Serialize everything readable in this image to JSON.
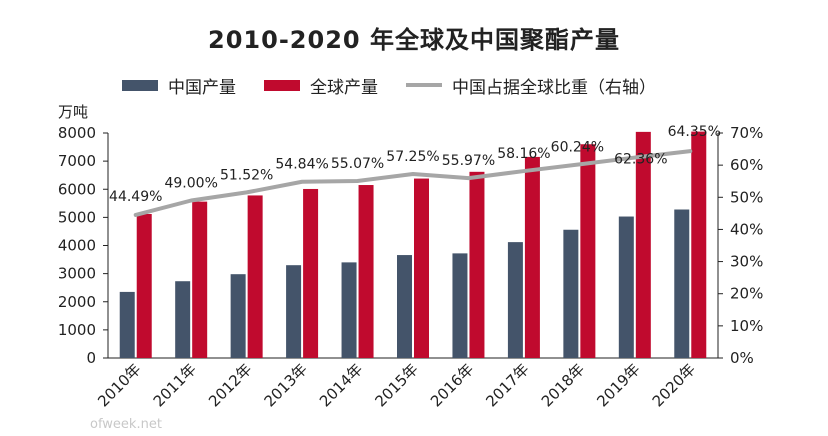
{
  "chart_data": {
    "type": "bar",
    "title": "2010-2020 年全球及中国聚酯产量",
    "y_unit_label": "万吨",
    "categories": [
      "2010年",
      "2011年",
      "2012年",
      "2013年",
      "2014年",
      "2015年",
      "2016年",
      "2017年",
      "2018年",
      "2019年",
      "2020年"
    ],
    "series": [
      {
        "name": "中国产量",
        "type": "bar",
        "axis": "left",
        "color": "#44546a",
        "values": [
          2350,
          2730,
          2980,
          3300,
          3400,
          3660,
          3720,
          4120,
          4560,
          5030,
          5280
        ]
      },
      {
        "name": "全球产量",
        "type": "bar",
        "axis": "left",
        "color": "#c00a2e",
        "values": [
          5120,
          5560,
          5780,
          6010,
          6150,
          6380,
          6620,
          7150,
          7600,
          8040,
          8050
        ]
      },
      {
        "name": "中国占据全球比重（右轴）",
        "type": "line",
        "axis": "right",
        "color": "#a6a6a6",
        "values": [
          0.4449,
          0.49,
          0.5152,
          0.5484,
          0.5507,
          0.5725,
          0.5597,
          0.5816,
          0.6024,
          0.6236,
          0.6435
        ]
      }
    ],
    "data_labels": [
      "44.49%",
      "49.00%",
      "51.52%",
      "54.84%",
      "55.07%",
      "57.25%",
      "55.97%",
      "58.16%",
      "60.24%",
      "62.36%",
      "64.35%"
    ],
    "y_left": {
      "min": 0,
      "max": 8000,
      "step": 1000,
      "ticks": [
        "0",
        "1000",
        "2000",
        "3000",
        "4000",
        "5000",
        "6000",
        "7000",
        "8000"
      ]
    },
    "y_right": {
      "min": 0,
      "max": 0.7,
      "step": 0.1,
      "ticks": [
        "0%",
        "10%",
        "20%",
        "30%",
        "40%",
        "50%",
        "60%",
        "70%"
      ]
    },
    "legend_position": "top",
    "grid": false
  },
  "watermark": "ofweek.net"
}
